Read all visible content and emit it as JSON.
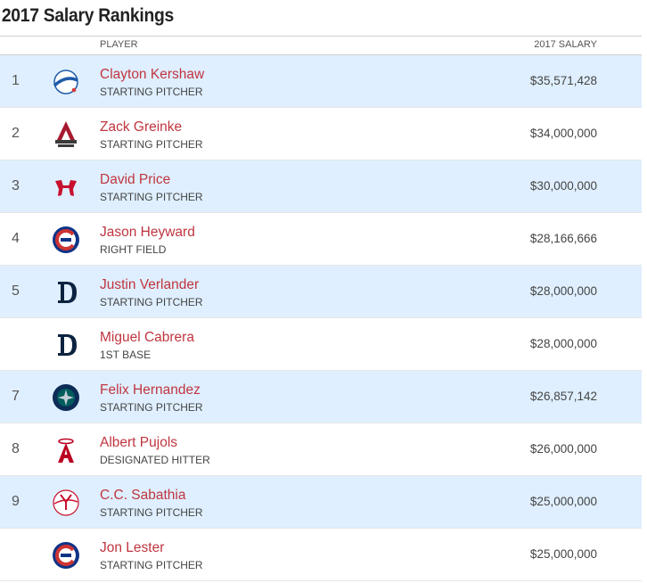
{
  "page": {
    "title": "2017 Salary Rankings"
  },
  "table": {
    "headers": {
      "player": "PLAYER",
      "salary": "2017 SALARY"
    },
    "rows": [
      {
        "rank": "1",
        "team_icon": "dodgers-logo-icon",
        "name": "Clayton Kershaw",
        "position": "STARTING PITCHER",
        "salary": "$35,571,428",
        "shaded": true
      },
      {
        "rank": "2",
        "team_icon": "diamondbacks-logo-icon",
        "name": "Zack Greinke",
        "position": "STARTING PITCHER",
        "salary": "$34,000,000",
        "shaded": false
      },
      {
        "rank": "3",
        "team_icon": "red-sox-logo-icon",
        "name": "David Price",
        "position": "STARTING PITCHER",
        "salary": "$30,000,000",
        "shaded": true
      },
      {
        "rank": "4",
        "team_icon": "cubs-logo-icon",
        "name": "Jason Heyward",
        "position": "RIGHT FIELD",
        "salary": "$28,166,666",
        "shaded": false
      },
      {
        "rank": "5",
        "team_icon": "tigers-logo-icon",
        "name": "Justin Verlander",
        "position": "STARTING PITCHER",
        "salary": "$28,000,000",
        "shaded": true
      },
      {
        "rank": "",
        "team_icon": "tigers-logo-icon",
        "name": "Miguel Cabrera",
        "position": "1ST BASE",
        "salary": "$28,000,000",
        "shaded": false
      },
      {
        "rank": "7",
        "team_icon": "mariners-logo-icon",
        "name": "Felix Hernandez",
        "position": "STARTING PITCHER",
        "salary": "$26,857,142",
        "shaded": true
      },
      {
        "rank": "8",
        "team_icon": "angels-logo-icon",
        "name": "Albert Pujols",
        "position": "DESIGNATED HITTER",
        "salary": "$26,000,000",
        "shaded": false
      },
      {
        "rank": "9",
        "team_icon": "yankees-logo-icon",
        "name": "C.C. Sabathia",
        "position": "STARTING PITCHER",
        "salary": "$25,000,000",
        "shaded": true
      },
      {
        "rank": "",
        "team_icon": "cubs-logo-icon",
        "name": "Jon Lester",
        "position": "STARTING PITCHER",
        "salary": "$25,000,000",
        "shaded": false
      }
    ]
  },
  "colors": {
    "name_link": "#c0353f",
    "row_shade": "#dfefff",
    "border": "#cfcfcf"
  }
}
